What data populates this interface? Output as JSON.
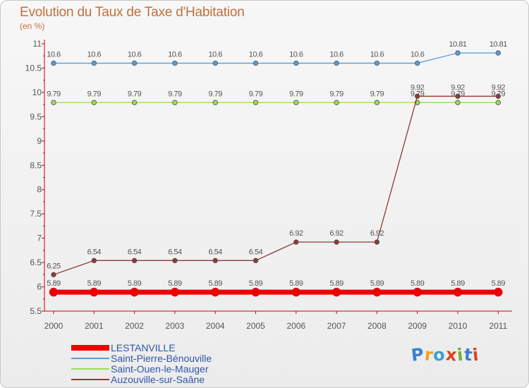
{
  "title": "Evolution du Taux de Taxe d'Habitation",
  "subtitle": "(en %)",
  "chart_data": {
    "type": "line",
    "x": [
      "2000",
      "2001",
      "2002",
      "2003",
      "2004",
      "2005",
      "2006",
      "2007",
      "2008",
      "2009",
      "2010",
      "2011"
    ],
    "yticks": [
      "5.5",
      "6",
      "6.5",
      "7",
      "7.5",
      "8",
      "8.5",
      "9",
      "9.5",
      "10",
      "10.5",
      "11"
    ],
    "ylim": [
      5.5,
      11
    ],
    "grid": false,
    "legend_position": "bottom-left",
    "series": [
      {
        "name": "LESTANVILLE",
        "color": "#ee0000",
        "values": [
          5.89,
          5.89,
          5.89,
          5.89,
          5.89,
          5.89,
          5.89,
          5.89,
          5.89,
          5.89,
          5.89,
          5.89
        ],
        "labels": [
          "5.89",
          "5.89",
          "5.89",
          "5.89",
          "5.89",
          "5.89",
          "5.89",
          "5.89",
          "5.89",
          "5.89",
          "5.89",
          "5.89"
        ]
      },
      {
        "name": "Saint-Pierre-Bénouville",
        "color": "#5b9bd5",
        "values": [
          10.6,
          10.6,
          10.6,
          10.6,
          10.6,
          10.6,
          10.6,
          10.6,
          10.6,
          10.6,
          10.81,
          10.81
        ],
        "labels": [
          "10.6",
          "10.6",
          "10.6",
          "10.6",
          "10.6",
          "10.6",
          "10.6",
          "10.6",
          "10.6",
          "10.6",
          "10.81",
          "10.81"
        ]
      },
      {
        "name": "Saint-Ouen-le-Mauger",
        "color": "#99dd55",
        "values": [
          9.79,
          9.79,
          9.79,
          9.79,
          9.79,
          9.79,
          9.79,
          9.79,
          9.79,
          9.79,
          9.79,
          9.79
        ],
        "labels": [
          "9.79",
          "9.79",
          "9.79",
          "9.79",
          "9.79",
          "9.79",
          "9.79",
          "9.79",
          "9.79",
          "9.79",
          "9.79",
          "9.79"
        ]
      },
      {
        "name": "Auzouville-sur-Saâne",
        "color": "#8b3a3a",
        "values": [
          6.25,
          6.54,
          6.54,
          6.54,
          6.54,
          6.54,
          6.92,
          6.92,
          6.92,
          9.92,
          9.92,
          9.92
        ],
        "labels": [
          "6.25",
          "6.54",
          "6.54",
          "6.54",
          "6.54",
          "6.54",
          "6.92",
          "6.92",
          "6.92",
          "9.92",
          "9.92",
          "9.92"
        ]
      }
    ]
  },
  "logo": {
    "text": "Proxiti",
    "letters": [
      "P",
      "r",
      "o",
      "x",
      "i",
      "t",
      "i"
    ],
    "colors": [
      "#3a7fd0",
      "#f0a020",
      "#3a9fd0",
      "#e04020",
      "#70b030",
      "#3a7fd0",
      "#e04020"
    ]
  }
}
